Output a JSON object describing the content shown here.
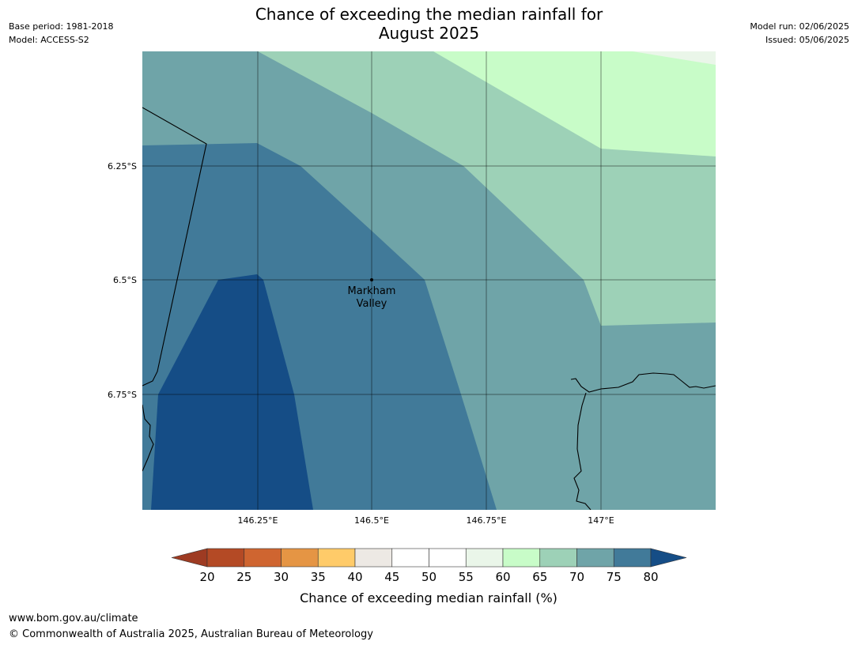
{
  "title": {
    "line1": "Chance of exceeding the median rainfall for",
    "line2": "August 2025"
  },
  "meta": {
    "base_period": "Base period: 1981-2018",
    "model": "Model: ACCESS-S2",
    "model_run": "Model run: 02/06/2025",
    "issued": "Issued: 05/06/2025"
  },
  "map": {
    "lon_labels": [
      "146.25°E",
      "146.5°E",
      "146.75°E",
      "147°E"
    ],
    "lat_labels": [
      "6.25°S",
      "6.5°S",
      "6.75°S"
    ],
    "place": {
      "name_line1": "Markham",
      "name_line2": "Valley"
    },
    "zones_percent": [
      "80+",
      "75-80",
      "70-75",
      "65-70",
      "60-65",
      "55-60"
    ]
  },
  "colorbar": {
    "ticks": [
      "20",
      "25",
      "30",
      "35",
      "40",
      "45",
      "50",
      "55",
      "60",
      "65",
      "70",
      "75",
      "80"
    ],
    "colors": {
      "under": "#9e3b22",
      "c20_25": "#b44a25",
      "c25_30": "#cf6530",
      "c30_35": "#e59544",
      "c35_40": "#ffcb69",
      "c40_45": "#ede9e4",
      "c45_50": "#ffffff",
      "c50_55": "#ffffff",
      "c55_60": "#eaf6e9",
      "c60_65": "#c8fcc8",
      "c65_70": "#9dd1b7",
      "c70_75": "#6fa4a8",
      "c75_80": "#417a99",
      "over": "#154d86"
    },
    "label": "Chance of exceeding median rainfall (%)"
  },
  "footer": {
    "url": "www.bom.gov.au/climate",
    "copyright": "© Commonwealth of Australia 2025, Australian Bureau of Meteorology"
  }
}
